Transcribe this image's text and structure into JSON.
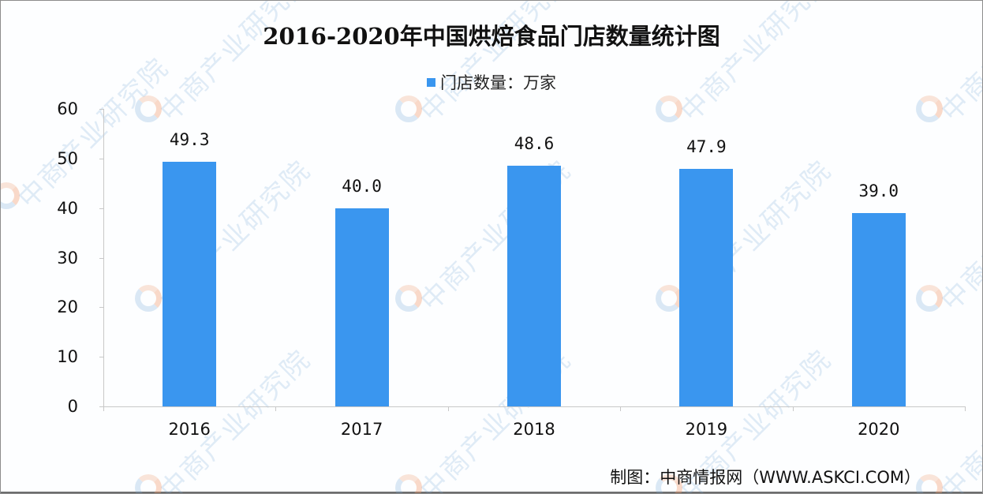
{
  "title": "2016-2020年中国烘焙食品门店数量统计图",
  "legend": {
    "label": "门店数量：万家",
    "color": "#3a96ef"
  },
  "source": "制图：中商情报网（WWW.ASKCI.COM）",
  "watermark": "中商产业研究院",
  "chart_data": {
    "type": "bar",
    "title": "2016-2020年中国烘焙食品门店数量统计图",
    "categories": [
      "2016",
      "2017",
      "2018",
      "2019",
      "2020"
    ],
    "series": [
      {
        "name": "门店数量：万家",
        "values": [
          49.3,
          40.0,
          48.6,
          47.9,
          39.0
        ],
        "color": "#3a96ef"
      }
    ],
    "value_labels": [
      "49.3",
      "40.0",
      "48.6",
      "47.9",
      "39.0"
    ],
    "xlabel": "",
    "ylabel": "",
    "ylim": [
      0,
      60
    ],
    "yticks": [
      0,
      10,
      20,
      30,
      40,
      50,
      60
    ],
    "grid": false,
    "legend_position": "top"
  }
}
